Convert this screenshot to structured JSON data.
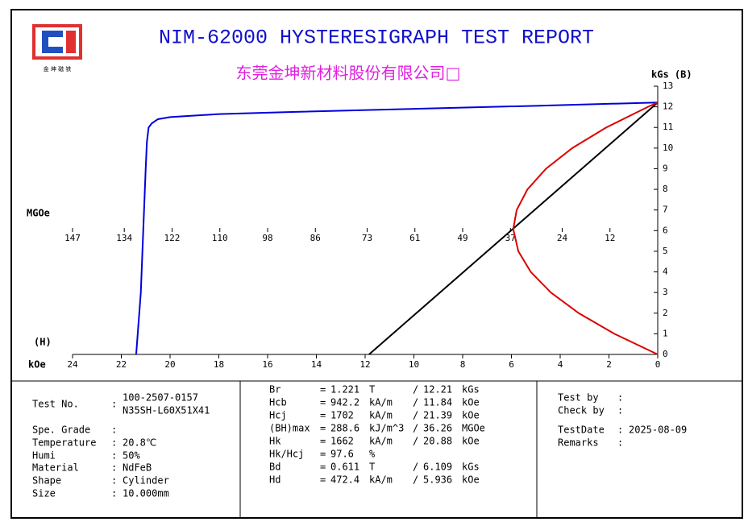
{
  "header": {
    "title": "NIM-62000 HYSTERESIGRAPH TEST REPORT",
    "company": "东莞金坤新材料股份有限公司□",
    "logo_text": "金 坤 磁 铁"
  },
  "chart_data": {
    "type": "line",
    "y_label": "kGs (B)",
    "x_label": "kOe",
    "x_symbol": "(H)",
    "x2_label": "MGOe",
    "xlim": [
      24,
      0
    ],
    "xticks": [
      24,
      22,
      20,
      18,
      16,
      14,
      12,
      10,
      8,
      6,
      4,
      2,
      0
    ],
    "x2lim": [
      147,
      0
    ],
    "x2ticks": [
      147,
      134,
      122,
      110,
      98,
      86,
      73,
      61,
      49,
      37,
      24,
      12
    ],
    "ylim": [
      0,
      13
    ],
    "yticks": [
      0,
      1,
      2,
      3,
      4,
      5,
      6,
      7,
      8,
      9,
      10,
      11,
      12,
      13
    ],
    "series": [
      {
        "color": "#0000dd",
        "x": [
          0,
          5,
          10,
          15,
          18,
          20,
          20.5,
          20.75,
          20.88,
          20.95,
          21.0,
          21.1,
          21.2,
          21.39
        ],
        "values": [
          12.21,
          12.05,
          11.9,
          11.75,
          11.65,
          11.5,
          11.4,
          11.2,
          11.0,
          10.3,
          9.0,
          6.0,
          3.0,
          0
        ]
      },
      {
        "color": "#000000",
        "x": [
          0,
          11.84
        ],
        "values": [
          12.21,
          0
        ]
      },
      {
        "color": "#dd0000",
        "axis": "x2",
        "x": [
          0,
          10.89,
          19.84,
          26.84,
          31.9,
          35.02,
          36.2,
          36.26,
          35.43,
          32.72,
          28.07,
          21.47,
          12.93,
          2.45,
          0
        ],
        "values": [
          0,
          1,
          2,
          3,
          4,
          5,
          6,
          6.109,
          7,
          8,
          9,
          10,
          11,
          12,
          12.21
        ]
      }
    ]
  },
  "report": {
    "separator": ":",
    "eq": "=",
    "slash": "/",
    "left": [
      {
        "label": "Test No.",
        "value": [
          "100-2507-0157",
          "N35SH-L60X51X41"
        ]
      },
      {
        "label": "Spe. Grade"
      },
      {
        "label": "Temperature",
        "value": [
          "20.8℃"
        ]
      },
      {
        "label": "Humi",
        "value": [
          "50%"
        ]
      },
      {
        "label": "Material",
        "value": [
          "NdFeB"
        ]
      },
      {
        "label": "Shape",
        "value": [
          "Cylinder"
        ]
      },
      {
        "label": "Size",
        "value": [
          "10.000mm"
        ]
      }
    ],
    "middle": [
      {
        "name": "Br",
        "si_value": "1.221",
        "si_unit": "T",
        "cgs_value": "12.21",
        "cgs_unit": "kGs"
      },
      {
        "name": "Hcb",
        "si_value": "942.2",
        "si_unit": "kA/m",
        "cgs_value": "11.84",
        "cgs_unit": "kOe"
      },
      {
        "name": "Hcj",
        "si_value": "1702",
        "si_unit": "kA/m",
        "cgs_value": "21.39",
        "cgs_unit": "kOe"
      },
      {
        "name": "(BH)max",
        "si_value": "288.6",
        "si_unit": "kJ/m^3",
        "cgs_value": "36.26",
        "cgs_unit": "MGOe"
      },
      {
        "name": "Hk",
        "si_value": "1662",
        "si_unit": "kA/m",
        "cgs_value": "20.88",
        "cgs_unit": "kOe"
      },
      {
        "name": "Hk/Hcj",
        "si_value": "97.6",
        "si_unit": "%"
      },
      {
        "name": "Bd",
        "si_value": "0.611",
        "si_unit": "T",
        "cgs_value": "6.109",
        "cgs_unit": "kGs"
      },
      {
        "name": "Hd",
        "si_value": "472.4",
        "si_unit": "kA/m",
        "cgs_value": "5.936",
        "cgs_unit": "kOe"
      }
    ],
    "right": [
      {
        "label": "Test by"
      },
      {
        "label": "Check by"
      },
      {
        "label": "TestDate",
        "value": "2025-08-09"
      },
      {
        "label": "Remarks"
      }
    ]
  }
}
